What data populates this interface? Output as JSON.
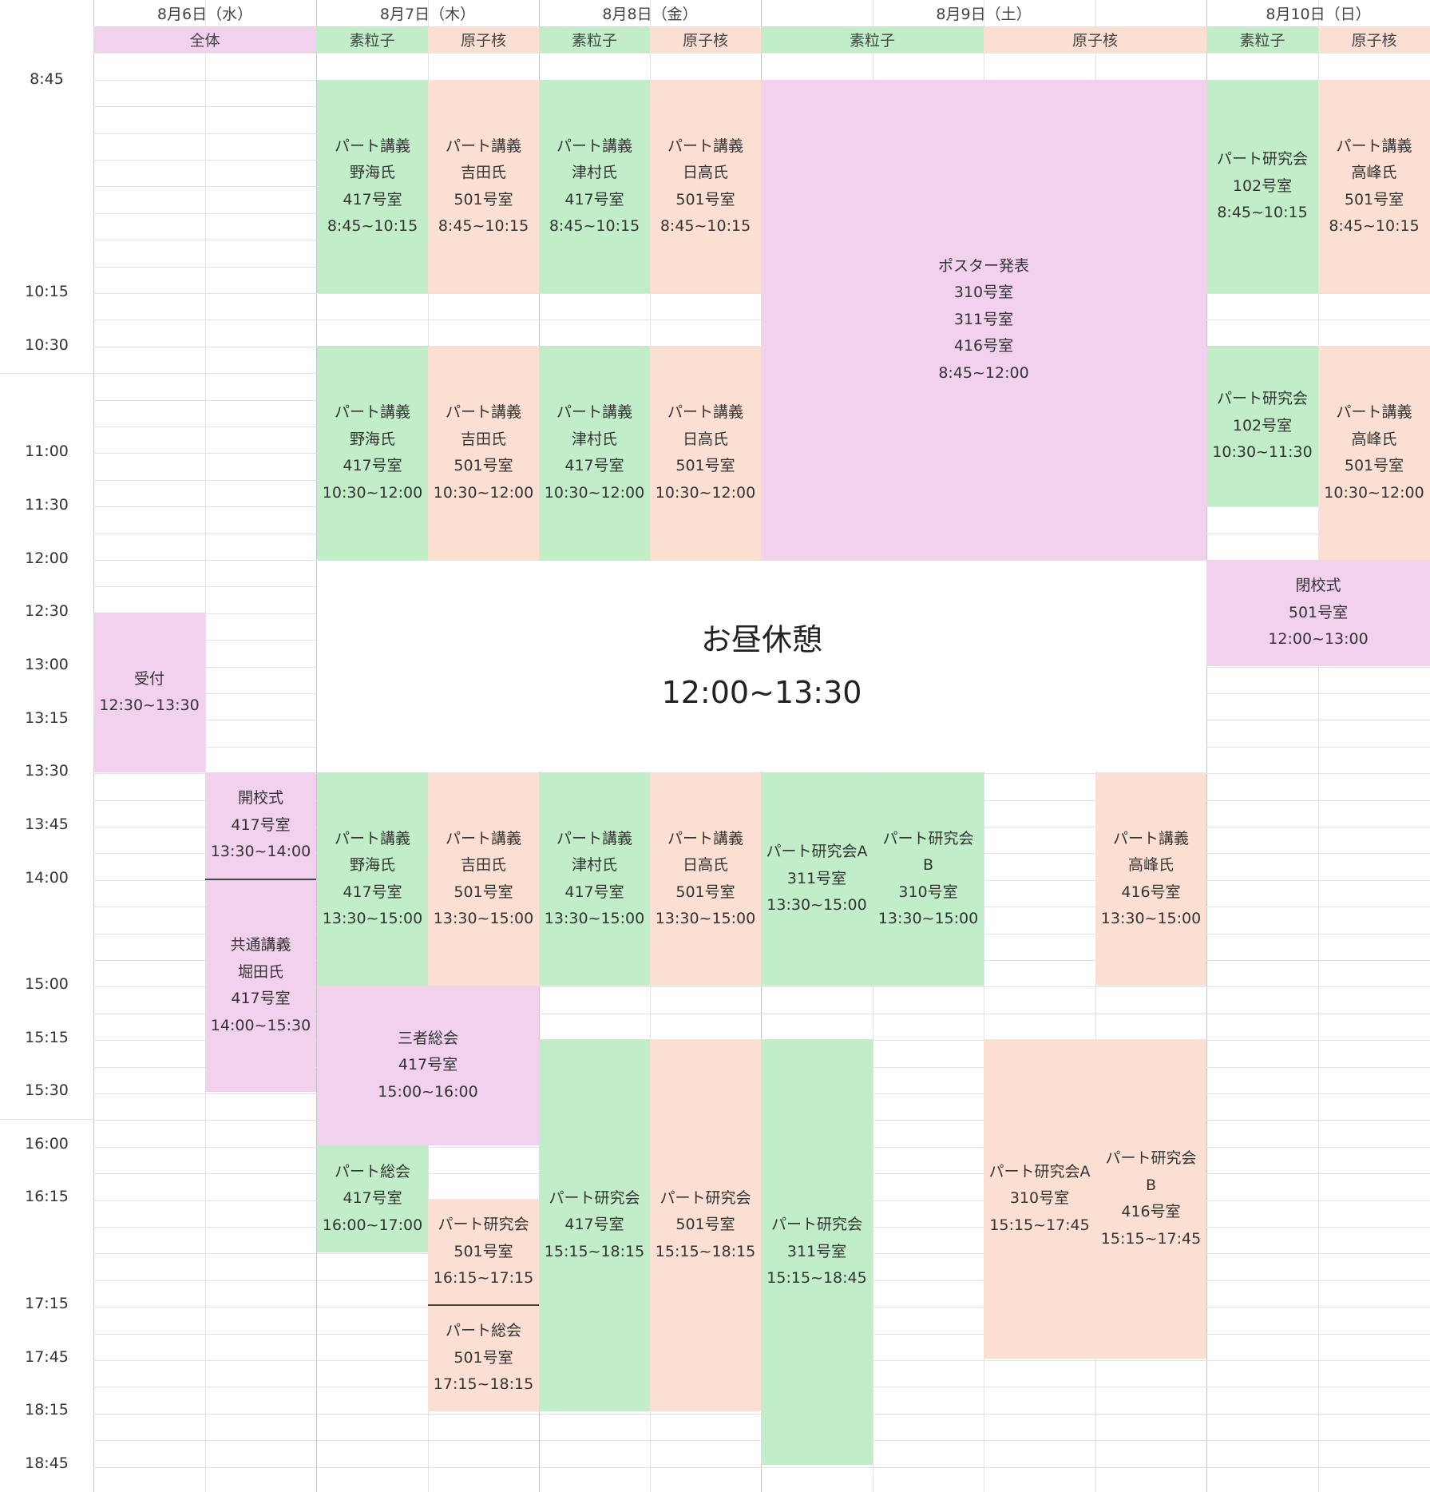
{
  "colors": {
    "general": "#f1d1ee",
    "particle": "#c1eec8",
    "nuclear": "#fadfd2",
    "grid": "#e3e3e3"
  },
  "days": [
    "8月6日（水）",
    "8月7日（木）",
    "8月8日（金）",
    "8月9日（土）",
    "8月10日（日）"
  ],
  "groups": {
    "general": "全体",
    "particle": "素粒子",
    "nuclear": "原子核"
  },
  "time_labels": [
    "8:45",
    "10:15",
    "10:30",
    "11:00",
    "11:30",
    "12:00",
    "12:30",
    "13:00",
    "13:15",
    "13:30",
    "13:45",
    "14:00",
    "15:00",
    "15:15",
    "15:30",
    "16:00",
    "16:15",
    "17:15",
    "17:45",
    "18:15",
    "18:45"
  ],
  "lunch": {
    "title": "お昼休憩",
    "time": "12:00~13:30"
  },
  "events": [
    {
      "id": "d1-reception",
      "kind": "general",
      "lines": [
        "受付",
        "12:30~13:30"
      ]
    },
    {
      "id": "d1-opening",
      "kind": "general",
      "lines": [
        "開校式",
        "417号室",
        "13:30~14:00"
      ]
    },
    {
      "id": "d1-common-lecture",
      "kind": "general",
      "lines": [
        "共通講義",
        "堀田氏",
        "417号室",
        "14:00~15:30"
      ]
    },
    {
      "id": "d2-p-1",
      "kind": "particle",
      "lines": [
        "パート講義",
        "野海氏",
        "417号室",
        "8:45~10:15"
      ]
    },
    {
      "id": "d2-n-1",
      "kind": "nuclear",
      "lines": [
        "パート講義",
        "吉田氏",
        "501号室",
        "8:45~10:15"
      ]
    },
    {
      "id": "d2-p-2",
      "kind": "particle",
      "lines": [
        "パート講義",
        "野海氏",
        "417号室",
        "10:30~12:00"
      ]
    },
    {
      "id": "d2-n-2",
      "kind": "nuclear",
      "lines": [
        "パート講義",
        "吉田氏",
        "501号室",
        "10:30~12:00"
      ]
    },
    {
      "id": "d2-p-3",
      "kind": "particle",
      "lines": [
        "パート講義",
        "野海氏",
        "417号室",
        "13:30~15:00"
      ]
    },
    {
      "id": "d2-n-3",
      "kind": "nuclear",
      "lines": [
        "パート講義",
        "吉田氏",
        "501号室",
        "13:30~15:00"
      ]
    },
    {
      "id": "d2-joint",
      "kind": "general",
      "lines": [
        "三者総会",
        "417号室",
        "15:00~16:00"
      ]
    },
    {
      "id": "d2-p-assembly",
      "kind": "particle",
      "lines": [
        "パート総会",
        "417号室",
        "16:00~17:00"
      ]
    },
    {
      "id": "d2-n-study",
      "kind": "nuclear",
      "lines": [
        "パート研究会",
        "501号室",
        "16:15~17:15"
      ]
    },
    {
      "id": "d2-n-assembly",
      "kind": "nuclear",
      "lines": [
        "パート総会",
        "501号室",
        "17:15~18:15"
      ]
    },
    {
      "id": "d3-p-1",
      "kind": "particle",
      "lines": [
        "パート講義",
        "津村氏",
        "417号室",
        "8:45~10:15"
      ]
    },
    {
      "id": "d3-n-1",
      "kind": "nuclear",
      "lines": [
        "パート講義",
        "日高氏",
        "501号室",
        "8:45~10:15"
      ]
    },
    {
      "id": "d3-p-2",
      "kind": "particle",
      "lines": [
        "パート講義",
        "津村氏",
        "417号室",
        "10:30~12:00"
      ]
    },
    {
      "id": "d3-n-2",
      "kind": "nuclear",
      "lines": [
        "パート講義",
        "日高氏",
        "501号室",
        "10:30~12:00"
      ]
    },
    {
      "id": "d3-p-3",
      "kind": "particle",
      "lines": [
        "パート講義",
        "津村氏",
        "417号室",
        "13:30~15:00"
      ]
    },
    {
      "id": "d3-n-3",
      "kind": "nuclear",
      "lines": [
        "パート講義",
        "日高氏",
        "501号室",
        "13:30~15:00"
      ]
    },
    {
      "id": "d3-p-study",
      "kind": "particle",
      "lines": [
        "パート研究会",
        "417号室",
        "15:15~18:15"
      ]
    },
    {
      "id": "d3-n-study",
      "kind": "nuclear",
      "lines": [
        "パート研究会",
        "501号室",
        "15:15~18:15"
      ]
    },
    {
      "id": "d4-poster",
      "kind": "general",
      "lines": [
        "ポスター発表",
        "310号室",
        "311号室",
        "416号室",
        "8:45~12:00"
      ]
    },
    {
      "id": "d4-p-study-a",
      "kind": "particle",
      "lines": [
        "パート研究会A",
        "311号室",
        "13:30~15:00"
      ]
    },
    {
      "id": "d4-p-study-b",
      "kind": "particle",
      "lines": [
        "パート研究会",
        "B",
        "310号室",
        "13:30~15:00"
      ]
    },
    {
      "id": "d4-n-lecture",
      "kind": "nuclear",
      "lines": [
        "パート講義",
        "高峰氏",
        "416号室",
        "13:30~15:00"
      ]
    },
    {
      "id": "d4-p-study-evening",
      "kind": "particle",
      "lines": [
        "パート研究会",
        "311号室",
        "15:15~18:45"
      ]
    },
    {
      "id": "d4-n-study-a",
      "kind": "nuclear",
      "lines": [
        "パート研究会A",
        "310号室",
        "15:15~17:45"
      ]
    },
    {
      "id": "d4-n-study-b",
      "kind": "nuclear",
      "lines": [
        "パート研究会",
        "B",
        "416号室",
        "15:15~17:45"
      ]
    },
    {
      "id": "d5-p-study-1",
      "kind": "particle",
      "lines": [
        "パート研究会",
        "102号室",
        "8:45~10:15"
      ]
    },
    {
      "id": "d5-n-1",
      "kind": "nuclear",
      "lines": [
        "パート講義",
        "高峰氏",
        "501号室",
        "8:45~10:15"
      ]
    },
    {
      "id": "d5-p-study-2",
      "kind": "particle",
      "lines": [
        "パート研究会",
        "102号室",
        "10:30~11:30"
      ]
    },
    {
      "id": "d5-n-2",
      "kind": "nuclear",
      "lines": [
        "パート講義",
        "高峰氏",
        "501号室",
        "10:30~12:00"
      ]
    },
    {
      "id": "d5-closing",
      "kind": "general",
      "lines": [
        "閉校式",
        "501号室",
        "12:00~13:00"
      ]
    }
  ]
}
